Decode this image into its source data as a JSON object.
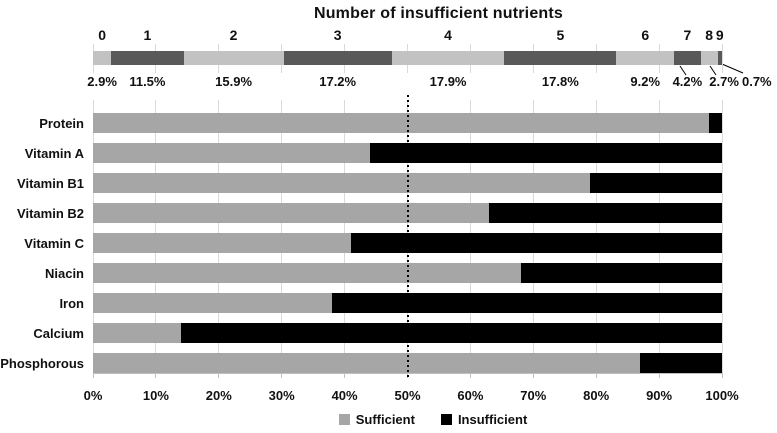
{
  "figure_title": "Number of  insufficient nutrients",
  "chart_data": [
    {
      "type": "bar",
      "subtype": "100%-stacked-horizontal-single-bar",
      "title": "Number of  insufficient nutrients",
      "categories": [
        "0",
        "1",
        "2",
        "3",
        "4",
        "5",
        "6",
        "7",
        "8",
        "9"
      ],
      "values": [
        2.9,
        11.5,
        15.9,
        17.2,
        17.9,
        17.8,
        9.2,
        4.2,
        2.7,
        0.7
      ],
      "value_labels": [
        "2.9%",
        "11.5%",
        "15.9%",
        "17.2%",
        "17.9%",
        "17.8%",
        "9.2%",
        "4.2%",
        "2.7%",
        "0.7%"
      ],
      "xlim": [
        0,
        100
      ],
      "grid": true,
      "legend_position": "none",
      "colors": {
        "even_segments": "#c2c2c2",
        "odd_segments": "#595959",
        "gridline": "#d9d9d9"
      }
    },
    {
      "type": "bar",
      "subtype": "100%-stacked-horizontal",
      "categories": [
        "Protein",
        "Vitamin A",
        "Vitamin B1",
        "Vitamin B2",
        "Vitamin C",
        "Niacin",
        "Iron",
        "Calcium",
        "Phosphorous"
      ],
      "series": [
        {
          "name": "Sufficient",
          "color": "#a6a6a6",
          "values": [
            98,
            44,
            79,
            63,
            41,
            68,
            38,
            14,
            87
          ]
        },
        {
          "name": "Insufficient",
          "color": "#000000",
          "values": [
            2,
            56,
            21,
            37,
            59,
            32,
            62,
            86,
            13
          ]
        }
      ],
      "x_ticks": [
        "0%",
        "10%",
        "20%",
        "30%",
        "40%",
        "50%",
        "60%",
        "70%",
        "80%",
        "90%",
        "100%"
      ],
      "xlim": [
        0,
        100
      ],
      "grid": true,
      "reference_line_x": 50,
      "legend_position": "bottom",
      "colors": {
        "gridline": "#d9d9d9",
        "axis": "#bfbfbf",
        "reference_line": "#000000"
      }
    }
  ]
}
